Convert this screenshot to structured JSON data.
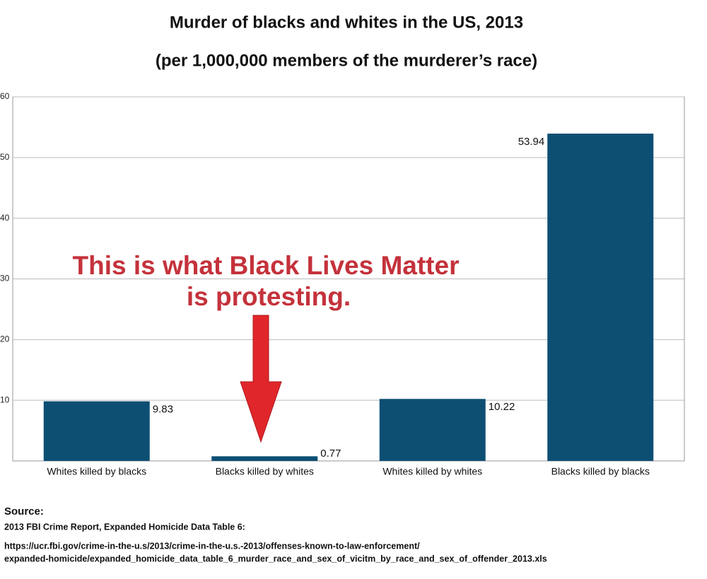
{
  "chart_data": {
    "type": "bar",
    "title": "Murder of blacks and whites in the US, 2013",
    "subtitle": "(per 1,000,000 members of the murderer’s race)",
    "categories": [
      "Whites killed by blacks",
      "Blacks killed by whites",
      "Whites killed by whites",
      "Blacks killed by blacks"
    ],
    "values": [
      9.83,
      0.77,
      10.22,
      53.94
    ],
    "color": "#0d4f73",
    "ylim": [
      0,
      60
    ],
    "yticks": [
      10,
      20,
      30,
      40,
      50,
      60
    ],
    "grid": true,
    "annotation": [
      "This is what Black Lives Matter",
      "is protesting."
    ],
    "source": {
      "heading": "Source:",
      "reference": "2013 FBI Crime Report, Expanded Homicide Data Table 6:",
      "url": [
        "https://ucr.fbi.gov/crime-in-the-u.s/2013/crime-in-the-u.s.-2013/offenses-known-to-law-enforcement/",
        "expanded-homicide/expanded_homicide_data_table_6_murder_race_and_sex_of_vicitm_by_race_and_sex_of_offender_2013.xls"
      ]
    }
  }
}
